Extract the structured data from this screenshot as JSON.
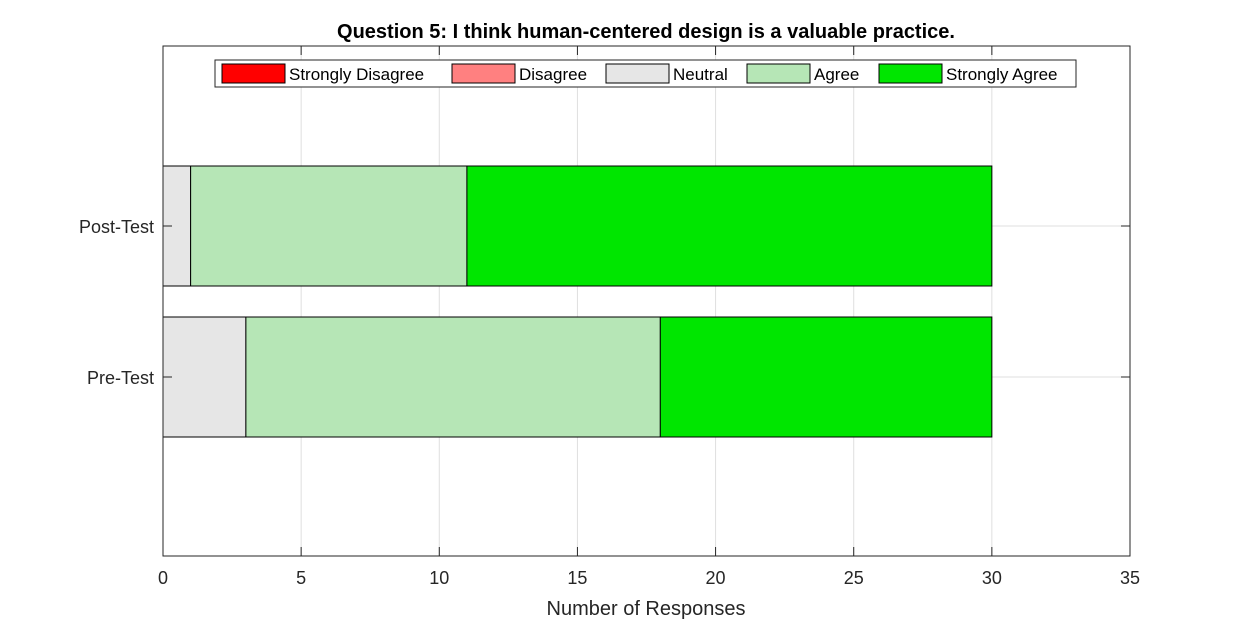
{
  "chart_data": {
    "type": "bar",
    "orientation": "horizontal",
    "stacked": true,
    "title": "Question 5: I think human-centered design is a valuable practice.",
    "xlabel": "Number of Responses",
    "ylabel": "",
    "xlim": [
      0,
      35
    ],
    "x_ticks": [
      0,
      5,
      10,
      15,
      20,
      25,
      30,
      35
    ],
    "categories": [
      "Pre-Test",
      "Post-Test"
    ],
    "series": [
      {
        "name": "Strongly Disagree",
        "color": "#ff0000",
        "values": [
          0,
          0
        ]
      },
      {
        "name": "Disagree",
        "color": "#ff8080",
        "values": [
          0,
          0
        ]
      },
      {
        "name": "Neutral",
        "color": "#e6e6e6",
        "values": [
          3,
          1
        ]
      },
      {
        "name": "Agree",
        "color": "#b6e6b6",
        "values": [
          15,
          10
        ]
      },
      {
        "name": "Strongly Agree",
        "color": "#00e600",
        "values": [
          12,
          19
        ]
      }
    ],
    "grid": true,
    "legend_position": "top"
  }
}
